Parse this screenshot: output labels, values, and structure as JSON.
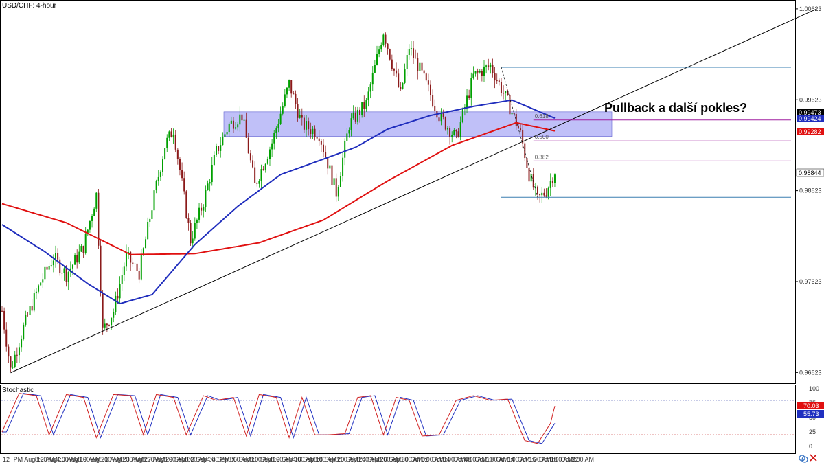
{
  "window_title": "USD/CHF: 4-hour",
  "stoch_title": "Stochastic",
  "annotation": "Pullback a další pokles?",
  "price_axis": {
    "ticks": [
      "1.00623",
      "0.99623",
      "0.98623",
      "0.97623",
      "0.96623"
    ],
    "tick_values": [
      1.00623,
      0.99623,
      0.98623,
      0.97623,
      0.96623
    ]
  },
  "stoch_axis": {
    "ticks": [
      "100",
      "75",
      "50",
      "25",
      "0"
    ],
    "tick_values": [
      100,
      75,
      50,
      25,
      0
    ]
  },
  "badges": {
    "last_price": "0.98844",
    "ma_blue": "0.99424",
    "ma_black": "0.99473",
    "ma_red": "0.99282",
    "stoch_k": "70.03",
    "stoch_d": "55.73"
  },
  "date_axis": {
    "labels": [
      "12",
      "PM",
      "Aug 12",
      "8:00 AM",
      "Aug 15",
      "4:00 AM",
      "Aug 19",
      "8:00 AM",
      "Aug 21",
      "8:00 AM",
      "Aug 23",
      "8:00 AM",
      "Aug 27",
      "8:00 AM",
      "Aug 29",
      "8:00 AM",
      "Sep 02",
      "8:00 AM",
      "Sep 04",
      "4:00 PM",
      "Sep 06",
      "8:00 AM",
      "Sep 10",
      "8:00 AM",
      "Sep 12",
      "8:00 AM",
      "Sep 16",
      "4:00 AM",
      "Sep 18",
      "8:00 AM",
      "Sep 20",
      "8:00 AM",
      "Sep 24",
      "8:00 AM",
      "Sep 26",
      "8:00 AM",
      "Sep 30",
      "8:00 AM",
      "Oct 02",
      "8:00 AM",
      "Oct 04",
      "8:00 AM",
      "Oct 08",
      "4:00 AM",
      "Oct 10",
      "8:00 AM",
      "Oct 14",
      "8:00 AM",
      "Oct 16",
      "8:00 AM",
      "Oct 18",
      "8:00 AM",
      "Oct 22",
      "8:00 AM"
    ]
  },
  "fib_labels": [
    "0.618",
    "0.500",
    "0.382"
  ],
  "colors": {
    "up_candle": "#00a000",
    "down_candle": "#8b1a1a",
    "ma_fast": "#1f2dbd",
    "ma_slow": "#e01010",
    "zone": "#8c8cf2",
    "fib_line": "#a020a0",
    "hline": "#3a7fb0",
    "trendline": "#000000",
    "stoch_k": "#d02020",
    "stoch_d": "#2030c0",
    "stoch_level": "#c01010",
    "stoch_level_upper": "#2030a0"
  },
  "chart_data": {
    "type": "candlestick",
    "title": "USD/CHF: 4-hour",
    "ylim": [
      0.9655,
      1.0066
    ],
    "date_anchors": [
      {
        "label": "Aug 12",
        "index": 0
      },
      {
        "label": "Aug 23",
        "index": 47
      },
      {
        "label": "Sep 04",
        "index": 86
      },
      {
        "label": "Sep 16",
        "index": 124
      },
      {
        "label": "Sep 26",
        "index": 163
      },
      {
        "label": "Oct 04",
        "index": 197
      },
      {
        "label": "Oct 14",
        "index": 229
      },
      {
        "label": "Oct 22",
        "index": 258
      }
    ],
    "close_path": [
      [
        0,
        0.973
      ],
      [
        4,
        0.9665
      ],
      [
        10,
        0.9712
      ],
      [
        18,
        0.9762
      ],
      [
        24,
        0.9789
      ],
      [
        30,
        0.977
      ],
      [
        38,
        0.98
      ],
      [
        44,
        0.9858
      ],
      [
        47,
        0.9708
      ],
      [
        52,
        0.973
      ],
      [
        58,
        0.979
      ],
      [
        64,
        0.9772
      ],
      [
        70,
        0.9845
      ],
      [
        76,
        0.9912
      ],
      [
        80,
        0.993
      ],
      [
        84,
        0.987
      ],
      [
        88,
        0.9808
      ],
      [
        94,
        0.985
      ],
      [
        100,
        0.9905
      ],
      [
        106,
        0.9935
      ],
      [
        112,
        0.9945
      ],
      [
        118,
        0.9868
      ],
      [
        126,
        0.9915
      ],
      [
        134,
        0.998
      ],
      [
        140,
        0.9935
      ],
      [
        148,
        0.9925
      ],
      [
        156,
        0.986
      ],
      [
        162,
        0.9935
      ],
      [
        170,
        0.9958
      ],
      [
        178,
        1.0038
      ],
      [
        186,
        0.9968
      ],
      [
        190,
        1.002
      ],
      [
        196,
        0.999
      ],
      [
        204,
        0.9945
      ],
      [
        212,
        0.992
      ],
      [
        220,
        0.9988
      ],
      [
        228,
        1.0
      ],
      [
        236,
        0.996
      ],
      [
        242,
        0.9925
      ],
      [
        246,
        0.988
      ],
      [
        250,
        0.9852
      ],
      [
        254,
        0.9862
      ],
      [
        258,
        0.9884
      ]
    ],
    "series": [
      {
        "name": "",
        "points": [
          [
            0,
            0.9848
          ],
          [
            30,
            0.9827
          ],
          [
            60,
            0.9792
          ],
          [
            90,
            0.9793
          ],
          [
            120,
            0.9805
          ],
          [
            150,
            0.983
          ],
          [
            180,
            0.9873
          ],
          [
            210,
            0.9912
          ],
          [
            240,
            0.9937
          ],
          [
            258,
            0.9928
          ]
        ]
      },
      {
        "name": "",
        "points": [
          [
            0,
            0.9825
          ],
          [
            20,
            0.9795
          ],
          [
            40,
            0.976
          ],
          [
            55,
            0.9738
          ],
          [
            70,
            0.9748
          ],
          [
            90,
            0.9803
          ],
          [
            110,
            0.9845
          ],
          [
            130,
            0.988
          ],
          [
            150,
            0.9897
          ],
          [
            165,
            0.991
          ],
          [
            180,
            0.993
          ],
          [
            200,
            0.9945
          ],
          [
            220,
            0.9955
          ],
          [
            238,
            0.9962
          ],
          [
            258,
            0.9942
          ]
        ]
      }
    ],
    "trendline": [
      [
        4,
        0.9662
      ],
      [
        380,
        1.0062
      ]
    ],
    "resistance_zone": [
      0.9922,
      0.9949
    ],
    "horizontal_levels": [
      0.9998,
      0.9855
    ],
    "fib_levels": [
      {
        "label": "0.618",
        "value": 0.994
      },
      {
        "label": "0.500",
        "value": 0.9917
      },
      {
        "label": "0.382",
        "value": 0.9895
      }
    ],
    "stochastic": {
      "ylim": [
        0,
        100
      ],
      "levels": [
        80,
        20
      ],
      "path": [
        [
          0,
          25
        ],
        [
          8,
          92
        ],
        [
          16,
          88
        ],
        [
          22,
          20
        ],
        [
          30,
          90
        ],
        [
          38,
          85
        ],
        [
          44,
          15
        ],
        [
          52,
          90
        ],
        [
          60,
          88
        ],
        [
          66,
          20
        ],
        [
          72,
          90
        ],
        [
          80,
          85
        ],
        [
          86,
          20
        ],
        [
          94,
          88
        ],
        [
          100,
          80
        ],
        [
          108,
          85
        ],
        [
          114,
          18
        ],
        [
          120,
          90
        ],
        [
          128,
          85
        ],
        [
          134,
          15
        ],
        [
          140,
          85
        ],
        [
          146,
          20
        ],
        [
          152,
          20
        ],
        [
          160,
          22
        ],
        [
          166,
          85
        ],
        [
          172,
          88
        ],
        [
          178,
          20
        ],
        [
          184,
          85
        ],
        [
          190,
          80
        ],
        [
          196,
          18
        ],
        [
          204,
          20
        ],
        [
          212,
          80
        ],
        [
          220,
          88
        ],
        [
          228,
          80
        ],
        [
          236,
          82
        ],
        [
          244,
          10
        ],
        [
          250,
          5
        ],
        [
          256,
          40
        ],
        [
          258,
          70
        ]
      ]
    }
  }
}
